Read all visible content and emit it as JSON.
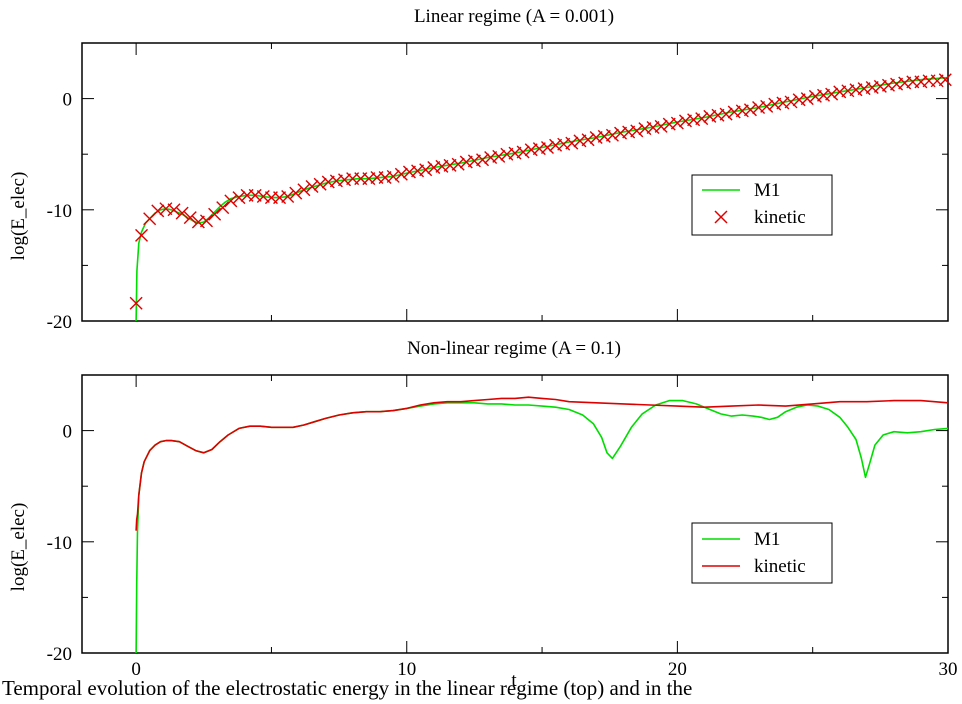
{
  "figure": {
    "caption": "Temporal evolution of the electrostatic energy in the linear regime (top) and in the",
    "xlabel_shared": "t"
  },
  "chart_data": [
    {
      "type": "line",
      "title": "Linear regime (A = 0.001)",
      "xlabel": "",
      "ylabel": "log(E_elec)",
      "xlim": [
        -2,
        30
      ],
      "ylim": [
        -20,
        5
      ],
      "xticks": [
        0,
        10,
        20,
        30
      ],
      "yticks": [
        -20,
        -10,
        0
      ],
      "ytick_labels": [
        "-20",
        "-10",
        "0"
      ],
      "xtick_labels_shown": false,
      "grid": false,
      "legend_position": "center-right",
      "series": [
        {
          "name": "M1",
          "color": "#00dd00",
          "style": "line",
          "x": [
            0,
            0.03,
            0.1,
            0.2,
            0.35,
            0.5,
            0.7,
            0.9,
            1.1,
            1.3,
            1.5,
            1.7,
            1.9,
            2.1,
            2.3,
            2.5,
            2.7,
            2.9,
            3.1,
            3.3,
            3.5,
            3.8,
            4.1,
            4.4,
            4.7,
            5.0,
            5.3,
            5.6,
            5.9,
            6.2,
            6.6,
            7.0,
            7.4,
            7.8,
            8.2,
            8.6,
            9.0,
            9.5,
            10.0,
            11.0,
            12.0,
            13.0,
            14.0,
            15.0,
            16.0,
            17.0,
            18.0,
            19.0,
            20.0,
            21.0,
            22.0,
            23.0,
            24.0,
            25.0,
            26.0,
            27.0,
            28.0,
            29.0,
            30.0
          ],
          "y": [
            -20,
            -15.5,
            -13,
            -12,
            -11.2,
            -10.8,
            -10.3,
            -10.0,
            -9.9,
            -10.0,
            -10.2,
            -10.4,
            -10.7,
            -11.0,
            -11.2,
            -11.1,
            -10.7,
            -10.2,
            -9.7,
            -9.3,
            -9.0,
            -8.8,
            -8.7,
            -8.7,
            -8.8,
            -8.9,
            -8.9,
            -8.8,
            -8.5,
            -8.2,
            -7.9,
            -7.6,
            -7.4,
            -7.3,
            -7.2,
            -7.2,
            -7.1,
            -7.0,
            -6.7,
            -6.2,
            -5.8,
            -5.3,
            -4.9,
            -4.4,
            -3.9,
            -3.5,
            -3.0,
            -2.6,
            -2.1,
            -1.7,
            -1.2,
            -0.8,
            -0.3,
            0.2,
            0.6,
            1.0,
            1.4,
            1.7,
            1.9
          ]
        },
        {
          "name": "kinetic",
          "color": "#dd0000",
          "style": "markers",
          "marker": "x",
          "x": [
            0,
            0.2,
            0.5,
            0.8,
            1.1,
            1.4,
            1.7,
            2.0,
            2.3,
            2.6,
            2.9,
            3.2,
            3.5,
            3.8,
            4.1,
            4.4,
            4.7,
            5.0,
            5.3,
            5.6,
            5.9,
            6.2,
            6.5,
            6.8,
            7.1,
            7.4,
            7.7,
            8.0,
            8.3,
            8.6,
            8.9,
            9.2,
            9.5,
            9.8,
            10.1,
            10.4,
            10.7,
            11.0,
            11.3,
            11.6,
            11.9,
            12.2,
            12.5,
            12.8,
            13.1,
            13.4,
            13.7,
            14.0,
            14.3,
            14.6,
            14.9,
            15.2,
            15.5,
            15.8,
            16.1,
            16.4,
            16.7,
            17.0,
            17.3,
            17.6,
            17.9,
            18.2,
            18.5,
            18.8,
            19.1,
            19.4,
            19.7,
            20.0,
            20.3,
            20.6,
            20.9,
            21.2,
            21.5,
            21.8,
            22.1,
            22.4,
            22.7,
            23.0,
            23.3,
            23.6,
            23.9,
            24.2,
            24.5,
            24.8,
            25.1,
            25.4,
            25.7,
            26.0,
            26.3,
            26.6,
            26.9,
            27.2,
            27.5,
            27.8,
            28.1,
            28.4,
            28.7,
            29.0,
            29.3,
            29.6,
            29.9
          ],
          "y": [
            -18.4,
            -12.3,
            -10.8,
            -10.1,
            -9.9,
            -10.0,
            -10.3,
            -10.7,
            -11.1,
            -11.0,
            -10.4,
            -9.8,
            -9.2,
            -8.9,
            -8.7,
            -8.7,
            -8.8,
            -8.9,
            -8.9,
            -8.8,
            -8.5,
            -8.2,
            -7.9,
            -7.7,
            -7.5,
            -7.4,
            -7.3,
            -7.2,
            -7.2,
            -7.2,
            -7.1,
            -7.1,
            -7.0,
            -6.8,
            -6.6,
            -6.5,
            -6.4,
            -6.2,
            -6.1,
            -6.0,
            -5.9,
            -5.7,
            -5.6,
            -5.5,
            -5.3,
            -5.2,
            -5.0,
            -4.9,
            -4.8,
            -4.6,
            -4.5,
            -4.4,
            -4.2,
            -4.1,
            -4.0,
            -3.8,
            -3.7,
            -3.5,
            -3.4,
            -3.3,
            -3.1,
            -3.0,
            -2.9,
            -2.7,
            -2.6,
            -2.5,
            -2.3,
            -2.2,
            -2.0,
            -1.9,
            -1.8,
            -1.6,
            -1.5,
            -1.4,
            -1.2,
            -1.1,
            -1.0,
            -0.8,
            -0.7,
            -0.5,
            -0.4,
            -0.3,
            -0.1,
            0.0,
            0.2,
            0.3,
            0.4,
            0.6,
            0.7,
            0.8,
            0.9,
            1.0,
            1.1,
            1.2,
            1.3,
            1.4,
            1.5,
            1.5,
            1.6,
            1.6,
            1.7
          ]
        }
      ]
    },
    {
      "type": "line",
      "title": "Non-linear regime (A = 0.1)",
      "xlabel": "t",
      "ylabel": "log(E_elec)",
      "xlim": [
        -2,
        30
      ],
      "ylim": [
        -20,
        5
      ],
      "xticks": [
        0,
        10,
        20,
        30
      ],
      "xtick_labels": [
        "0",
        "10",
        "20",
        "30"
      ],
      "yticks": [
        -20,
        -10,
        0
      ],
      "ytick_labels": [
        "-20",
        "-10",
        "0"
      ],
      "grid": false,
      "legend_position": "bottom-right",
      "series": [
        {
          "name": "M1",
          "color": "#00dd00",
          "style": "line",
          "x": [
            0,
            0.02,
            0.05,
            0.1,
            0.2,
            0.3,
            0.5,
            0.7,
            0.9,
            1.1,
            1.3,
            1.6,
            1.9,
            2.2,
            2.5,
            2.8,
            3.1,
            3.4,
            3.8,
            4.2,
            4.6,
            5.0,
            5.4,
            5.8,
            6.2,
            6.6,
            7.0,
            7.5,
            8.0,
            8.5,
            9.0,
            9.5,
            10.0,
            10.5,
            11.0,
            11.5,
            12.0,
            12.5,
            13.0,
            13.5,
            14.0,
            14.5,
            15.0,
            15.5,
            16.0,
            16.5,
            16.9,
            17.2,
            17.4,
            17.6,
            17.9,
            18.3,
            18.7,
            19.2,
            19.7,
            20.2,
            20.7,
            21.2,
            21.6,
            22.0,
            22.4,
            22.8,
            23.1,
            23.4,
            23.7,
            24.0,
            24.4,
            24.8,
            25.2,
            25.6,
            26.0,
            26.3,
            26.6,
            26.8,
            26.95,
            27.1,
            27.3,
            27.6,
            28.0,
            28.5,
            29.0,
            29.5,
            30.0
          ],
          "y": [
            -20,
            -14,
            -9,
            -5.8,
            -3.8,
            -2.8,
            -1.8,
            -1.3,
            -1.0,
            -0.9,
            -0.9,
            -1.0,
            -1.4,
            -1.8,
            -2.0,
            -1.7,
            -1.0,
            -0.4,
            0.2,
            0.4,
            0.4,
            0.3,
            0.3,
            0.3,
            0.5,
            0.8,
            1.1,
            1.4,
            1.6,
            1.7,
            1.7,
            1.8,
            2.0,
            2.2,
            2.4,
            2.5,
            2.5,
            2.5,
            2.4,
            2.4,
            2.3,
            2.3,
            2.2,
            2.1,
            1.9,
            1.4,
            0.6,
            -0.6,
            -2.0,
            -2.5,
            -1.4,
            0.3,
            1.5,
            2.3,
            2.7,
            2.7,
            2.4,
            1.9,
            1.5,
            1.3,
            1.4,
            1.3,
            1.2,
            1.0,
            1.2,
            1.7,
            2.1,
            2.3,
            2.2,
            1.9,
            1.2,
            0.3,
            -0.8,
            -2.5,
            -4.2,
            -3.0,
            -1.3,
            -0.4,
            -0.1,
            -0.2,
            -0.1,
            0.1,
            0.2
          ]
        },
        {
          "name": "kinetic",
          "color": "#dd0000",
          "style": "line",
          "x": [
            0,
            0.02,
            0.05,
            0.1,
            0.2,
            0.3,
            0.5,
            0.7,
            0.9,
            1.1,
            1.3,
            1.6,
            1.9,
            2.2,
            2.5,
            2.8,
            3.1,
            3.4,
            3.8,
            4.2,
            4.6,
            5.0,
            5.4,
            5.8,
            6.2,
            6.6,
            7.0,
            7.5,
            8.0,
            8.5,
            9.0,
            9.5,
            10.0,
            10.5,
            11.0,
            11.5,
            12.0,
            12.5,
            13.0,
            13.5,
            14.0,
            14.5,
            15.0,
            15.5,
            16.0,
            17.0,
            18.0,
            19.0,
            20.0,
            21.0,
            22.0,
            23.0,
            24.0,
            25.0,
            26.0,
            27.0,
            28.0,
            29.0,
            30.0
          ],
          "y": [
            -9,
            -8,
            -7.5,
            -5.8,
            -3.8,
            -2.8,
            -1.8,
            -1.3,
            -1.0,
            -0.9,
            -0.9,
            -1.0,
            -1.4,
            -1.8,
            -2.0,
            -1.7,
            -1.0,
            -0.4,
            0.2,
            0.4,
            0.4,
            0.3,
            0.3,
            0.3,
            0.5,
            0.8,
            1.1,
            1.4,
            1.6,
            1.7,
            1.7,
            1.8,
            2.0,
            2.3,
            2.5,
            2.6,
            2.6,
            2.7,
            2.8,
            2.9,
            2.9,
            3.0,
            2.9,
            2.8,
            2.6,
            2.5,
            2.4,
            2.3,
            2.2,
            2.1,
            2.2,
            2.3,
            2.2,
            2.4,
            2.6,
            2.6,
            2.7,
            2.7,
            2.5
          ]
        }
      ]
    }
  ]
}
